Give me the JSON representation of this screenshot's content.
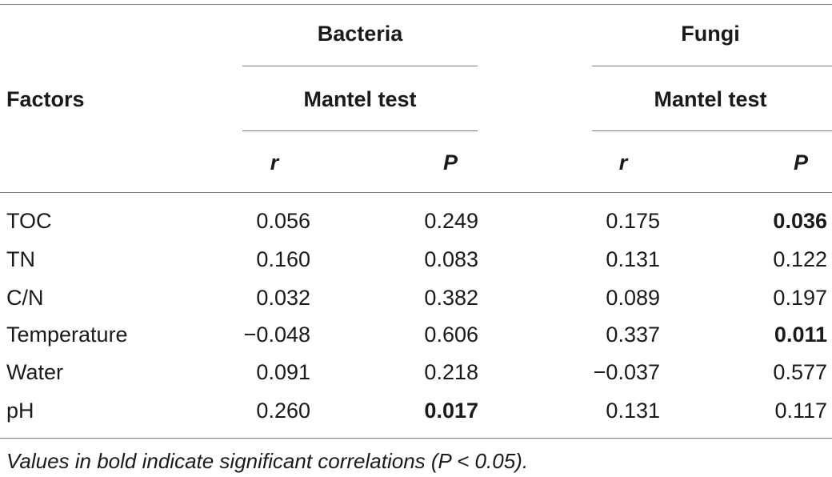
{
  "header": {
    "factors_label": "Factors",
    "groups": [
      {
        "name": "Bacteria",
        "test": "Mantel test",
        "r_label": "r",
        "p_label": "P"
      },
      {
        "name": "Fungi",
        "test": "Mantel test",
        "r_label": "r",
        "p_label": "P"
      }
    ]
  },
  "rows": [
    {
      "factor": "TOC",
      "b_r": "0.056",
      "b_p": "0.249",
      "f_r": "0.175",
      "f_p": "0.036",
      "b_p_bold": false,
      "f_p_bold": true
    },
    {
      "factor": "TN",
      "b_r": "0.160",
      "b_p": "0.083",
      "f_r": "0.131",
      "f_p": "0.122",
      "b_p_bold": false,
      "f_p_bold": false
    },
    {
      "factor": "C/N",
      "b_r": "0.032",
      "b_p": "0.382",
      "f_r": "0.089",
      "f_p": "0.197",
      "b_p_bold": false,
      "f_p_bold": false
    },
    {
      "factor": "Temperature",
      "b_r": "−0.048",
      "b_p": "0.606",
      "f_r": "0.337",
      "f_p": "0.011",
      "b_p_bold": false,
      "f_p_bold": true
    },
    {
      "factor": "Water",
      "b_r": "0.091",
      "b_p": "0.218",
      "f_r": "−0.037",
      "f_p": "0.577",
      "b_p_bold": false,
      "f_p_bold": false
    },
    {
      "factor": "pH",
      "b_r": "0.260",
      "b_p": "0.017",
      "f_r": "0.131",
      "f_p": "0.117",
      "b_p_bold": true,
      "f_p_bold": false
    }
  ],
  "footnote": "Values in bold indicate significant correlations (P < 0.05)."
}
